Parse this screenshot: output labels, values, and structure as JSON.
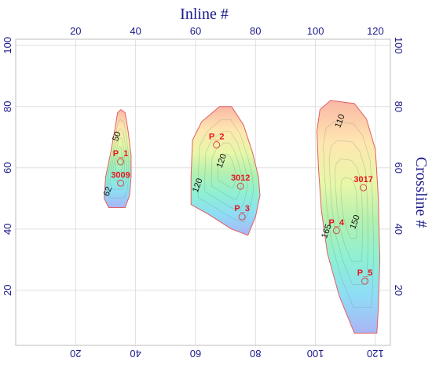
{
  "chart_data": {
    "type": "contour-map",
    "xlabel": "Inline #",
    "ylabel": "Crossline #",
    "xlim": [
      0,
      125
    ],
    "ylim": [
      2,
      102
    ],
    "x_ticks": [
      20,
      40,
      60,
      80,
      100,
      120
    ],
    "y_ticks": [
      20,
      40,
      60,
      80,
      100
    ],
    "grid": true,
    "colors": {
      "axis_text": "#1a1a8c",
      "well_label": "#e8141e",
      "grid": "#d9d9d9",
      "outline": "#e06060"
    },
    "bodies": [
      {
        "name": "body-1",
        "outline": [
          [
            35,
            79
          ],
          [
            36.5,
            78
          ],
          [
            37.5,
            72
          ],
          [
            38.5,
            64
          ],
          [
            38.5,
            57
          ],
          [
            38,
            51
          ],
          [
            36.5,
            47
          ],
          [
            31,
            47
          ],
          [
            29.5,
            50
          ],
          [
            30,
            57
          ],
          [
            31.5,
            64
          ],
          [
            33,
            72
          ],
          [
            34,
            78
          ]
        ],
        "contour_labels": [
          {
            "text": "50",
            "x": 34.5,
            "y": 70
          },
          {
            "text": "62",
            "x": 31.5,
            "y": 52
          }
        ]
      },
      {
        "name": "body-2",
        "outline": [
          [
            68,
            80
          ],
          [
            72,
            80
          ],
          [
            76,
            74
          ],
          [
            79,
            65
          ],
          [
            81,
            57
          ],
          [
            81.5,
            51
          ],
          [
            80,
            44
          ],
          [
            77.5,
            38
          ],
          [
            72,
            40
          ],
          [
            64,
            45
          ],
          [
            58.5,
            48
          ],
          [
            58.5,
            57
          ],
          [
            59,
            69
          ],
          [
            62,
            75
          ]
        ],
        "contour_labels": [
          {
            "text": "120",
            "x": 69.5,
            "y": 62
          },
          {
            "text": "120",
            "x": 61.5,
            "y": 54
          }
        ]
      },
      {
        "name": "body-3",
        "outline": [
          [
            105,
            82
          ],
          [
            113,
            81
          ],
          [
            117,
            76
          ],
          [
            120,
            66
          ],
          [
            121,
            50
          ],
          [
            121.5,
            30
          ],
          [
            121,
            14
          ],
          [
            120.5,
            6
          ],
          [
            113,
            6
          ],
          [
            108,
            18
          ],
          [
            104,
            32
          ],
          [
            102,
            46
          ],
          [
            101,
            60
          ],
          [
            100.5,
            72
          ],
          [
            101.5,
            79
          ]
        ],
        "contour_labels": [
          {
            "text": "110",
            "x": 109,
            "y": 75
          },
          {
            "text": "165",
            "x": 104.5,
            "y": 39
          },
          {
            "text": "150",
            "x": 114,
            "y": 42
          }
        ]
      }
    ],
    "wells": [
      {
        "name": "P_1",
        "x": 35,
        "y": 62
      },
      {
        "name": "3009",
        "x": 35,
        "y": 55
      },
      {
        "name": "P_2",
        "x": 67,
        "y": 67.5
      },
      {
        "name": "3012",
        "x": 75,
        "y": 54
      },
      {
        "name": "P_3",
        "x": 75.5,
        "y": 44
      },
      {
        "name": "3017",
        "x": 116,
        "y": 53.5
      },
      {
        "name": "P_4",
        "x": 107,
        "y": 39.5
      },
      {
        "name": "P_5",
        "x": 116.5,
        "y": 23
      }
    ]
  }
}
